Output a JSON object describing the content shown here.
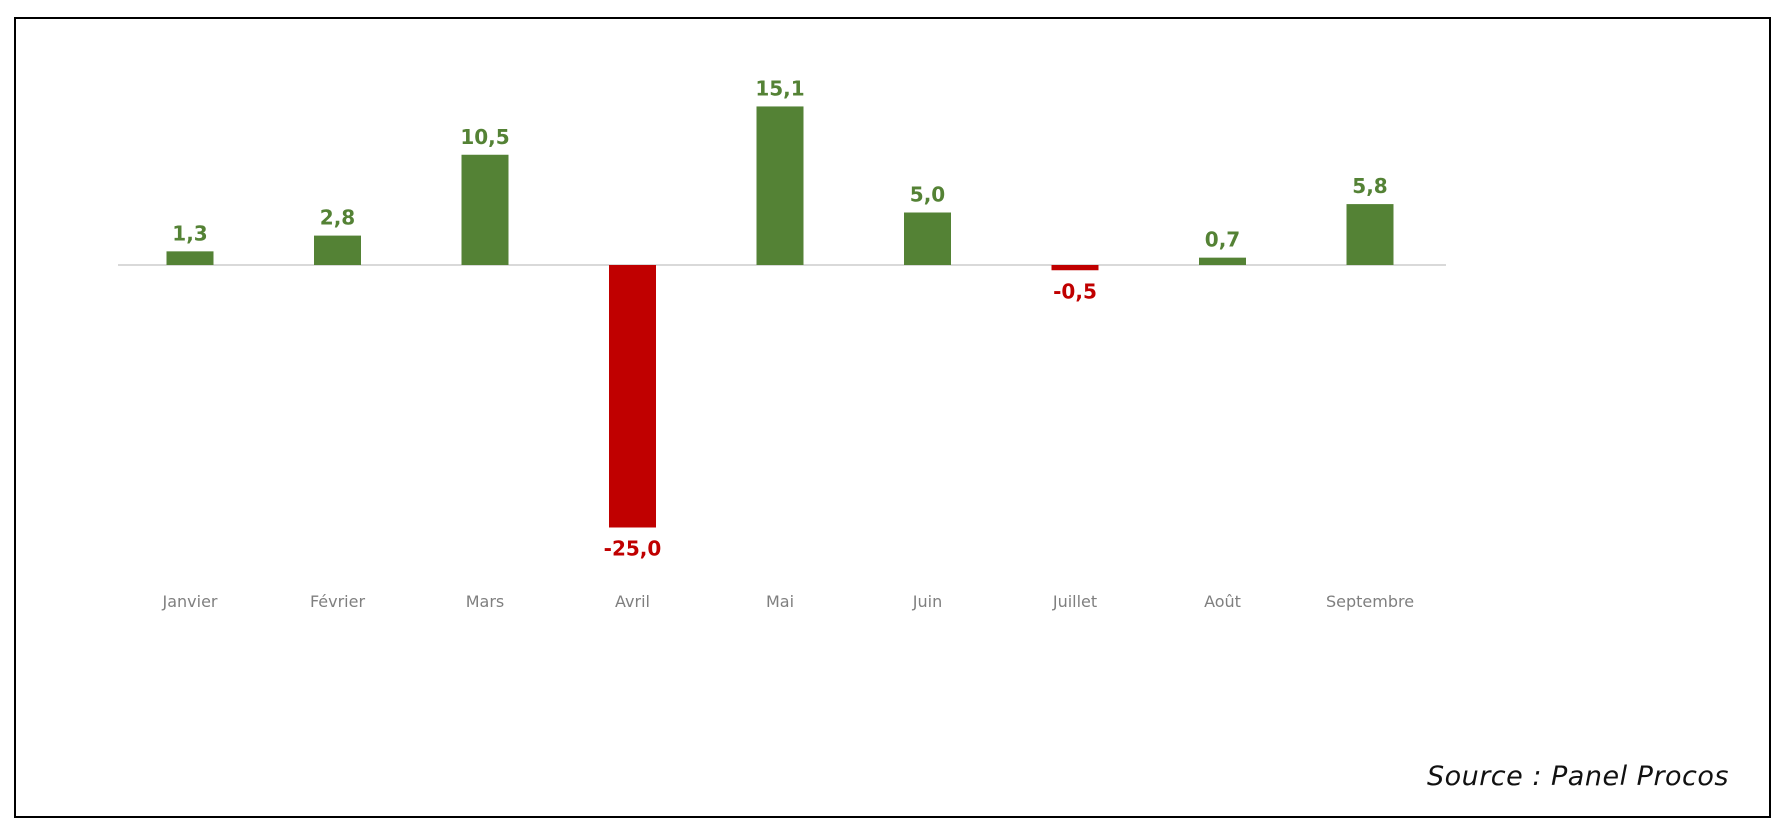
{
  "chart_data": {
    "type": "bar",
    "categories": [
      "Janvier",
      "Février",
      "Mars",
      "Avril",
      "Mai",
      "Juin",
      "Juillet",
      "Août",
      "Septembre"
    ],
    "values": [
      1.3,
      2.8,
      10.5,
      -25.0,
      15.1,
      5.0,
      -0.5,
      0.7,
      5.8
    ],
    "value_labels": [
      "1,3",
      "2,8",
      "10,5",
      "-25,0",
      "15,1",
      "5,0",
      "-0,5",
      "0,7",
      "5,8"
    ],
    "title": "",
    "xlabel": "",
    "ylabel": "",
    "ylim": [
      -25,
      15.1
    ],
    "grid": false,
    "legend": "none",
    "colors": {
      "positive": "#548235",
      "negative": "#c00000",
      "axis": "#d9d9d9",
      "category_text": "#7f7f7f"
    }
  },
  "source": "Source : Panel Procos"
}
